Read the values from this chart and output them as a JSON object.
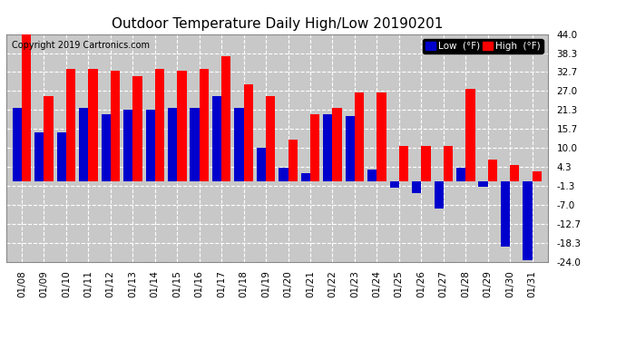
{
  "title": "Outdoor Temperature Daily High/Low 20190201",
  "copyright": "Copyright 2019 Cartronics.com",
  "dates": [
    "01/08",
    "01/09",
    "01/10",
    "01/11",
    "01/12",
    "01/13",
    "01/14",
    "01/15",
    "01/16",
    "01/17",
    "01/18",
    "01/19",
    "01/20",
    "01/21",
    "01/22",
    "01/23",
    "01/24",
    "01/25",
    "01/26",
    "01/27",
    "01/28",
    "01/29",
    "01/30",
    "01/31"
  ],
  "high_values": [
    44.0,
    25.5,
    33.5,
    33.5,
    33.0,
    31.5,
    33.5,
    33.0,
    33.5,
    37.5,
    29.0,
    25.5,
    12.5,
    20.0,
    22.0,
    26.5,
    26.5,
    10.5,
    10.5,
    10.5,
    27.5,
    6.5,
    5.0,
    3.0
  ],
  "low_values": [
    22.0,
    14.5,
    14.5,
    22.0,
    20.0,
    21.5,
    21.5,
    22.0,
    22.0,
    25.5,
    22.0,
    10.0,
    4.0,
    2.5,
    20.0,
    19.5,
    3.5,
    -2.0,
    -3.5,
    -8.0,
    4.0,
    -1.5,
    -19.5,
    -23.5
  ],
  "high_color": "#FF0000",
  "low_color": "#0000CC",
  "bg_color": "#FFFFFF",
  "plot_bg_color": "#C8C8C8",
  "grid_color": "#FFFFFF",
  "ylim": [
    -24.0,
    44.0
  ],
  "yticks": [
    44.0,
    38.3,
    32.7,
    27.0,
    21.3,
    15.7,
    10.0,
    4.3,
    -1.3,
    -7.0,
    -12.7,
    -18.3,
    -24.0
  ],
  "bar_width": 0.42,
  "legend_low_label": "Low  (°F)",
  "legend_high_label": "High  (°F)",
  "title_fontsize": 11,
  "tick_fontsize": 7.5,
  "copyright_fontsize": 7
}
